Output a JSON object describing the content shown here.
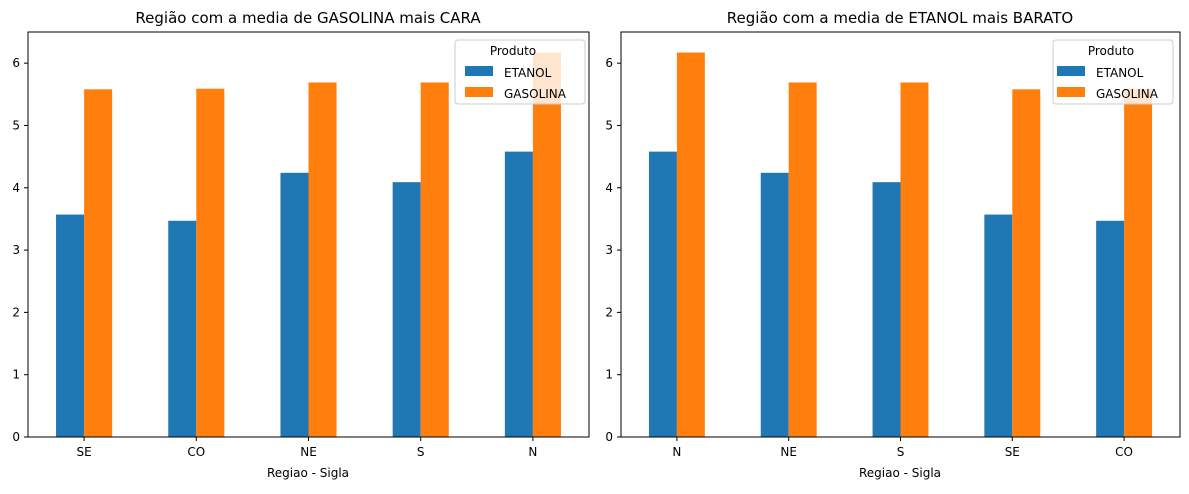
{
  "colors": {
    "ETANOL": "#1f77b4",
    "GASOLINA": "#ff7f0e"
  },
  "chart_data": [
    {
      "type": "bar",
      "title": "Região com a media de GASOLINA mais CARA",
      "xlabel": "Regiao - Sigla",
      "ylabel": "",
      "ylim": [
        0,
        6.5
      ],
      "yticks": [
        0,
        1,
        2,
        3,
        4,
        5,
        6
      ],
      "categories": [
        "SE",
        "CO",
        "NE",
        "S",
        "N"
      ],
      "series": [
        {
          "name": "ETANOL",
          "values": [
            3.57,
            3.47,
            4.24,
            4.09,
            4.58
          ]
        },
        {
          "name": "GASOLINA",
          "values": [
            5.58,
            5.59,
            5.69,
            5.69,
            6.17
          ]
        }
      ],
      "legend_title": "Produto",
      "legend_position": "upper right",
      "grid": false
    },
    {
      "type": "bar",
      "title": "Região com a  media de ETANOL mais BARATO",
      "xlabel": "Regiao - Sigla",
      "ylabel": "",
      "ylim": [
        0,
        6.5
      ],
      "yticks": [
        0,
        1,
        2,
        3,
        4,
        5,
        6
      ],
      "categories": [
        "N",
        "NE",
        "S",
        "SE",
        "CO"
      ],
      "series": [
        {
          "name": "ETANOL",
          "values": [
            4.58,
            4.24,
            4.09,
            3.57,
            3.47
          ]
        },
        {
          "name": "GASOLINA",
          "values": [
            6.17,
            5.69,
            5.69,
            5.58,
            5.59
          ]
        }
      ],
      "legend_title": "Produto",
      "legend_position": "upper right",
      "grid": false
    }
  ]
}
